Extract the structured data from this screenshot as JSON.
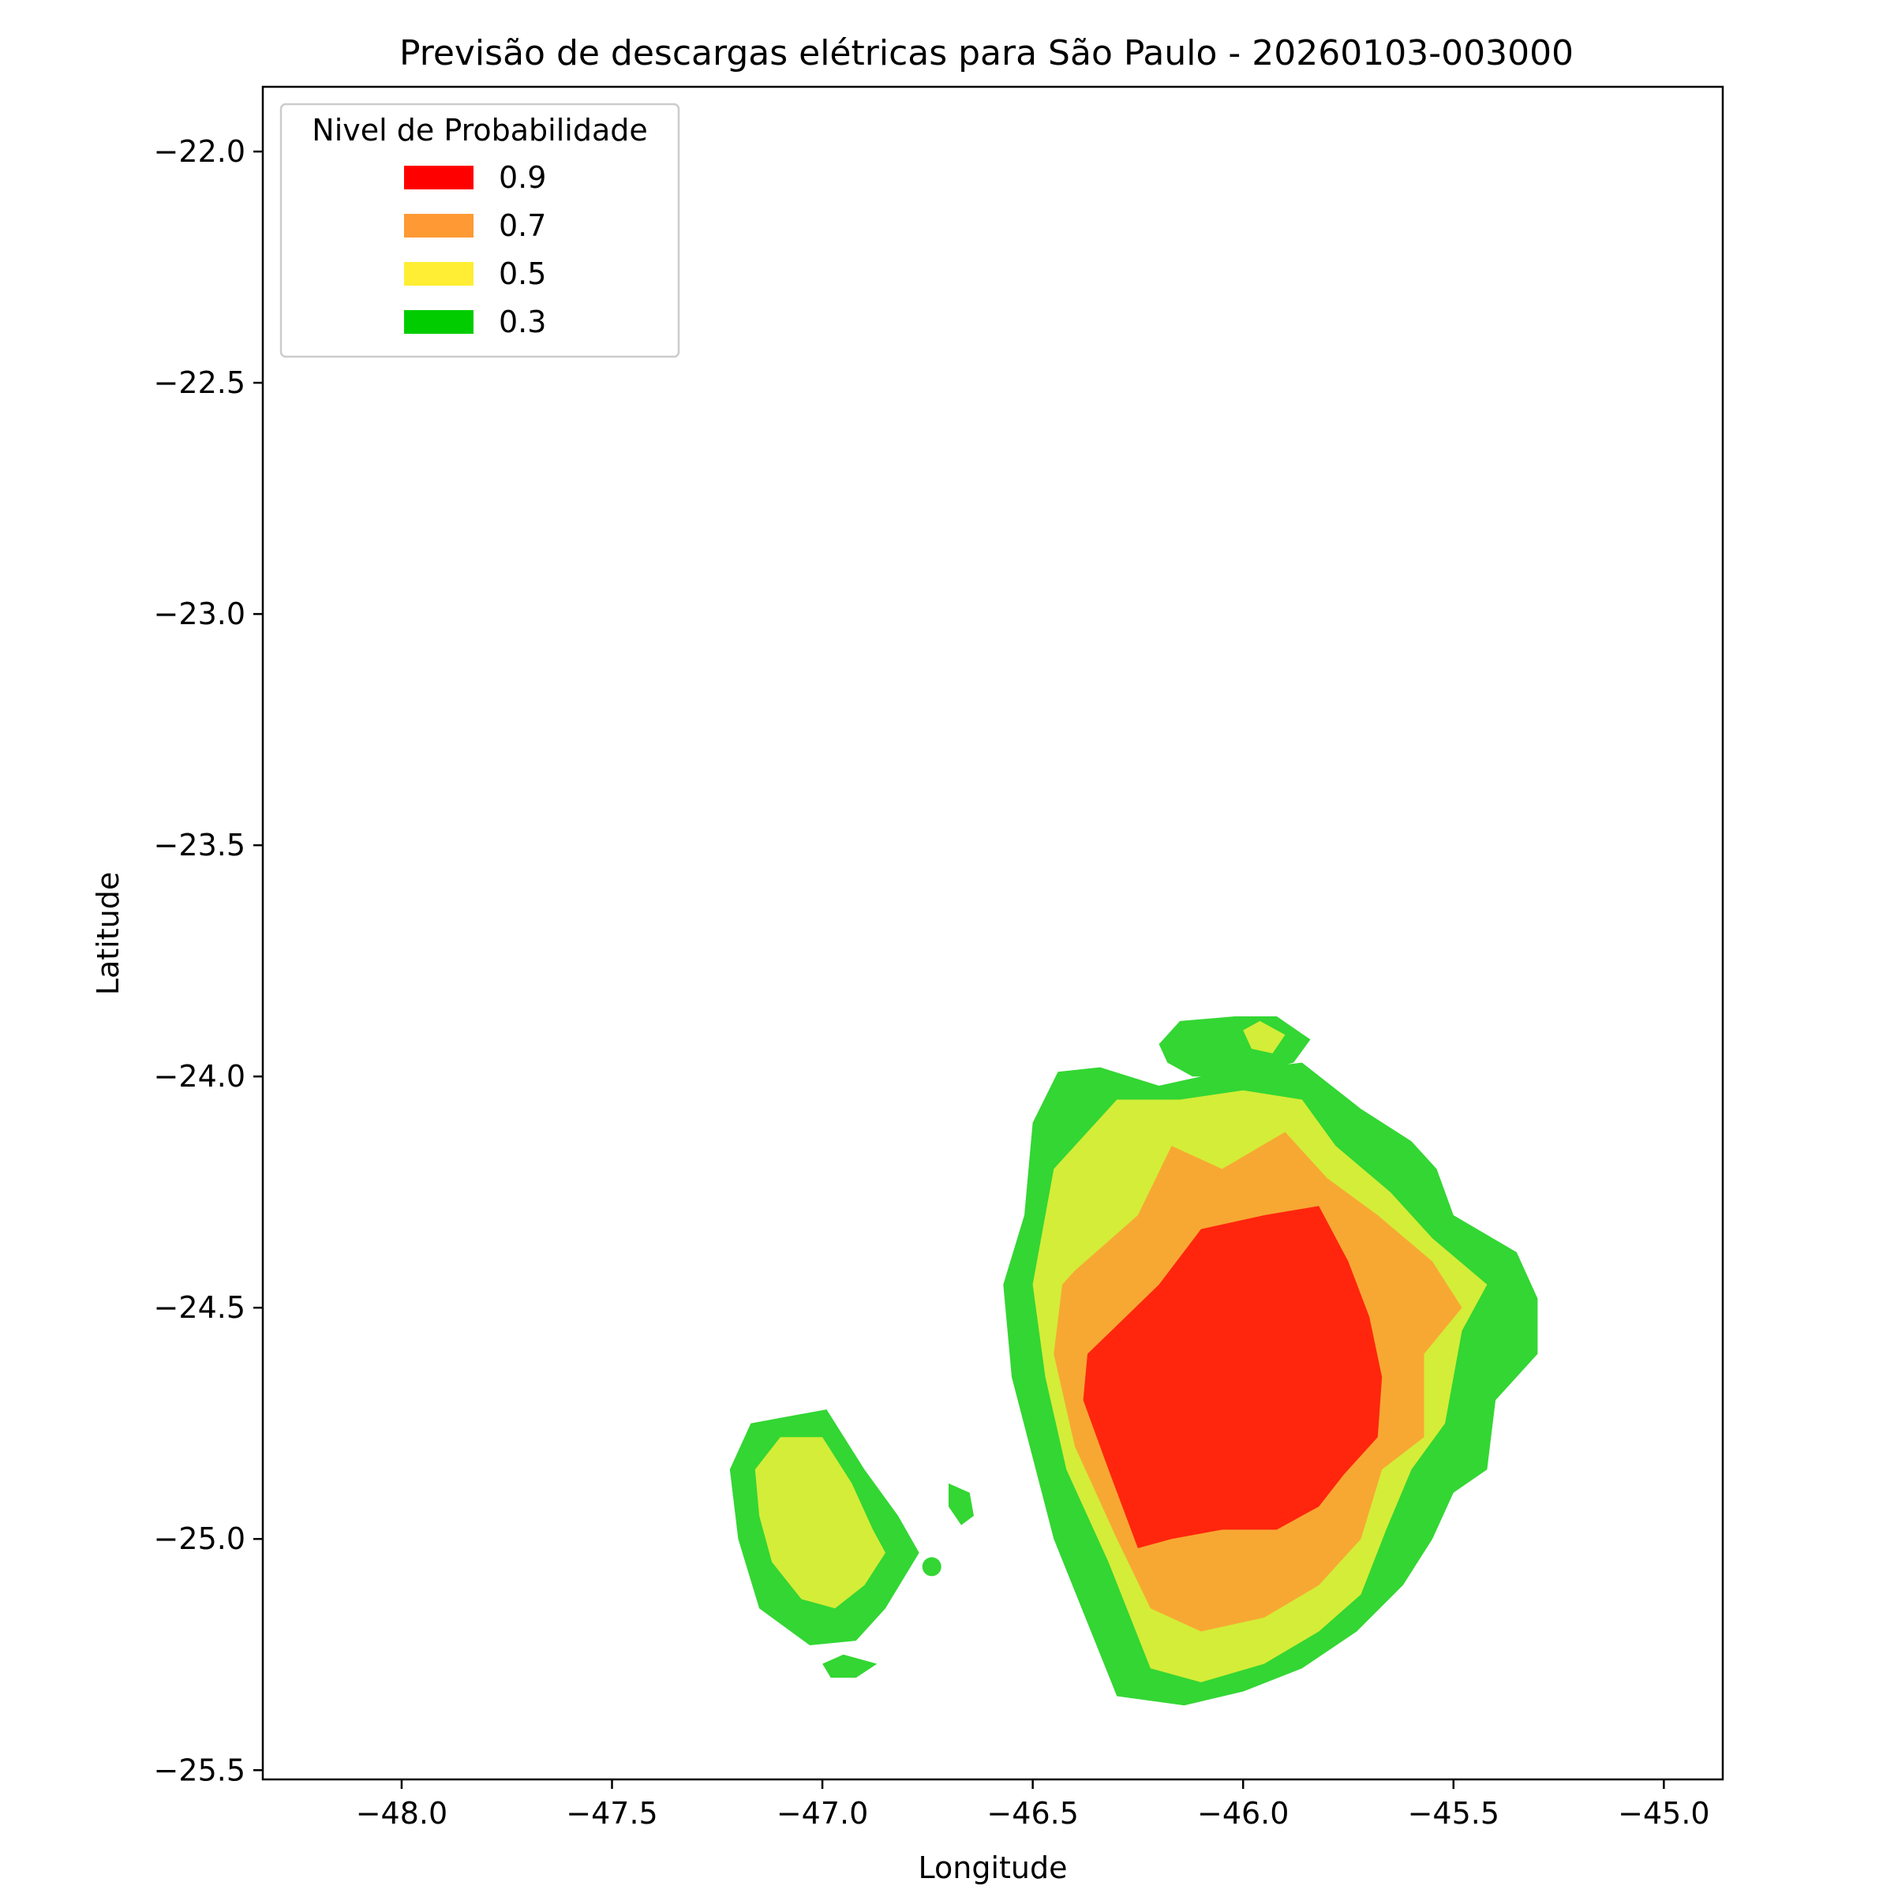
{
  "chart_data": {
    "type": "contour",
    "title": "Previsão de descargas elétricas para São Paulo - 20260103-003000",
    "xlabel": "Longitude",
    "ylabel": "Latitude",
    "xlim": [
      -48.33,
      -44.86
    ],
    "ylim": [
      -25.52,
      -21.86
    ],
    "x_ticks": [
      -48.0,
      -47.5,
      -47.0,
      -46.5,
      -46.0,
      -45.5,
      -45.0
    ],
    "x_tick_labels": [
      "−48.0",
      "−47.5",
      "−47.0",
      "−46.5",
      "−46.0",
      "−45.5",
      "−45.0"
    ],
    "y_ticks": [
      -22.0,
      -22.5,
      -23.0,
      -23.5,
      -24.0,
      -24.5,
      -25.0,
      -25.5
    ],
    "y_tick_labels": [
      "−22.0",
      "−22.5",
      "−23.0",
      "−23.5",
      "−24.0",
      "−24.5",
      "−25.0",
      "−25.5"
    ],
    "grid": false,
    "legend": {
      "title": "Nivel de Probabilidade",
      "placement": "top-left",
      "entries": [
        {
          "label": "0.9",
          "color": "#ff0000"
        },
        {
          "label": "0.7",
          "color": "#ff9933"
        },
        {
          "label": "0.5",
          "color": "#ffee33"
        },
        {
          "label": "0.3",
          "color": "#00cc00"
        }
      ]
    },
    "level_fill_colors": {
      "0.3": "#33d633",
      "0.5": "#d4ed38",
      "0.7": "#f7a833",
      "0.9": "#ff260d"
    },
    "regions": [
      {
        "name": "main-cell-0.3",
        "level": "0.3",
        "points": [
          [
            -46.5,
            -24.1
          ],
          [
            -46.44,
            -23.99
          ],
          [
            -46.34,
            -23.98
          ],
          [
            -46.2,
            -24.02
          ],
          [
            -46.05,
            -23.99
          ],
          [
            -45.86,
            -23.97
          ],
          [
            -45.72,
            -24.07
          ],
          [
            -45.6,
            -24.14
          ],
          [
            -45.54,
            -24.2
          ],
          [
            -45.5,
            -24.3
          ],
          [
            -45.35,
            -24.38
          ],
          [
            -45.3,
            -24.48
          ],
          [
            -45.3,
            -24.6
          ],
          [
            -45.4,
            -24.7
          ],
          [
            -45.42,
            -24.85
          ],
          [
            -45.5,
            -24.9
          ],
          [
            -45.55,
            -25.0
          ],
          [
            -45.62,
            -25.1
          ],
          [
            -45.73,
            -25.2
          ],
          [
            -45.86,
            -25.28
          ],
          [
            -46.0,
            -25.33
          ],
          [
            -46.14,
            -25.36
          ],
          [
            -46.3,
            -25.34
          ],
          [
            -46.45,
            -25.0
          ],
          [
            -46.55,
            -24.65
          ],
          [
            -46.57,
            -24.45
          ],
          [
            -46.52,
            -24.3
          ]
        ]
      },
      {
        "name": "main-cell-0.5",
        "level": "0.5",
        "points": [
          [
            -46.45,
            -24.2
          ],
          [
            -46.3,
            -24.05
          ],
          [
            -46.15,
            -24.05
          ],
          [
            -46.0,
            -24.03
          ],
          [
            -45.86,
            -24.05
          ],
          [
            -45.78,
            -24.15
          ],
          [
            -45.65,
            -24.25
          ],
          [
            -45.55,
            -24.35
          ],
          [
            -45.42,
            -24.45
          ],
          [
            -45.48,
            -24.55
          ],
          [
            -45.52,
            -24.75
          ],
          [
            -45.6,
            -24.85
          ],
          [
            -45.66,
            -24.98
          ],
          [
            -45.72,
            -25.12
          ],
          [
            -45.82,
            -25.2
          ],
          [
            -45.95,
            -25.27
          ],
          [
            -46.1,
            -25.31
          ],
          [
            -46.22,
            -25.28
          ],
          [
            -46.32,
            -25.05
          ],
          [
            -46.42,
            -24.85
          ],
          [
            -46.47,
            -24.65
          ],
          [
            -46.5,
            -24.45
          ]
        ]
      },
      {
        "name": "main-cell-0.7",
        "level": "0.7",
        "points": [
          [
            -46.4,
            -24.42
          ],
          [
            -46.25,
            -24.3
          ],
          [
            -46.17,
            -24.15
          ],
          [
            -46.05,
            -24.2
          ],
          [
            -45.9,
            -24.12
          ],
          [
            -45.8,
            -24.22
          ],
          [
            -45.68,
            -24.3
          ],
          [
            -45.55,
            -24.4
          ],
          [
            -45.48,
            -24.5
          ],
          [
            -45.57,
            -24.6
          ],
          [
            -45.57,
            -24.78
          ],
          [
            -45.67,
            -24.85
          ],
          [
            -45.72,
            -25.0
          ],
          [
            -45.82,
            -25.1
          ],
          [
            -45.95,
            -25.17
          ],
          [
            -46.1,
            -25.2
          ],
          [
            -46.22,
            -25.15
          ],
          [
            -46.3,
            -25.0
          ],
          [
            -46.4,
            -24.8
          ],
          [
            -46.45,
            -24.6
          ],
          [
            -46.43,
            -24.45
          ]
        ]
      },
      {
        "name": "main-cell-0.9",
        "level": "0.9",
        "points": [
          [
            -46.37,
            -24.6
          ],
          [
            -46.2,
            -24.45
          ],
          [
            -46.1,
            -24.33
          ],
          [
            -45.95,
            -24.3
          ],
          [
            -45.82,
            -24.28
          ],
          [
            -45.75,
            -24.4
          ],
          [
            -45.7,
            -24.52
          ],
          [
            -45.67,
            -24.65
          ],
          [
            -45.68,
            -24.78
          ],
          [
            -45.76,
            -24.86
          ],
          [
            -45.82,
            -24.93
          ],
          [
            -45.92,
            -24.98
          ],
          [
            -46.05,
            -24.98
          ],
          [
            -46.17,
            -25.0
          ],
          [
            -46.25,
            -25.02
          ],
          [
            -46.32,
            -24.85
          ],
          [
            -46.38,
            -24.7
          ]
        ]
      },
      {
        "name": "north-cell-0.3",
        "level": "0.3",
        "points": [
          [
            -46.2,
            -23.93
          ],
          [
            -46.15,
            -23.88
          ],
          [
            -46.02,
            -23.87
          ],
          [
            -45.92,
            -23.87
          ],
          [
            -45.84,
            -23.92
          ],
          [
            -45.88,
            -23.97
          ],
          [
            -46.0,
            -24.0
          ],
          [
            -46.12,
            -24.0
          ],
          [
            -46.18,
            -23.97
          ]
        ]
      },
      {
        "name": "north-cell-0.5",
        "level": "0.5",
        "points": [
          [
            -46.0,
            -23.9
          ],
          [
            -45.96,
            -23.88
          ],
          [
            -45.9,
            -23.91
          ],
          [
            -45.93,
            -23.95
          ],
          [
            -45.98,
            -23.94
          ]
        ]
      },
      {
        "name": "west-cell-0.3",
        "level": "0.3",
        "points": [
          [
            -47.22,
            -24.85
          ],
          [
            -47.17,
            -24.75
          ],
          [
            -46.99,
            -24.72
          ],
          [
            -46.9,
            -24.85
          ],
          [
            -46.82,
            -24.95
          ],
          [
            -46.77,
            -25.03
          ],
          [
            -46.85,
            -25.15
          ],
          [
            -46.92,
            -25.22
          ],
          [
            -47.03,
            -25.23
          ],
          [
            -47.15,
            -25.15
          ],
          [
            -47.2,
            -25.0
          ]
        ]
      },
      {
        "name": "west-cell-0.5",
        "level": "0.5",
        "points": [
          [
            -47.16,
            -24.85
          ],
          [
            -47.1,
            -24.78
          ],
          [
            -47.0,
            -24.78
          ],
          [
            -46.93,
            -24.88
          ],
          [
            -46.88,
            -24.98
          ],
          [
            -46.85,
            -25.03
          ],
          [
            -46.9,
            -25.1
          ],
          [
            -46.97,
            -25.15
          ],
          [
            -47.05,
            -25.13
          ],
          [
            -47.12,
            -25.05
          ],
          [
            -47.15,
            -24.95
          ]
        ]
      },
      {
        "name": "west-fragment-0.3",
        "level": "0.3",
        "points": [
          [
            -47.0,
            -25.27
          ],
          [
            -46.95,
            -25.25
          ],
          [
            -46.87,
            -25.27
          ],
          [
            -46.92,
            -25.3
          ],
          [
            -46.98,
            -25.3
          ]
        ]
      },
      {
        "name": "east-fragment-0.3",
        "level": "0.3",
        "points": [
          [
            -46.7,
            -24.88
          ],
          [
            -46.65,
            -24.9
          ],
          [
            -46.64,
            -24.95
          ],
          [
            -46.67,
            -24.97
          ],
          [
            -46.7,
            -24.93
          ]
        ]
      }
    ],
    "dots": [
      {
        "name": "dot-north",
        "lon": -46.08,
        "lat": -23.95,
        "level": "0.3"
      },
      {
        "name": "dot-west",
        "lon": -46.74,
        "lat": -25.06,
        "level": "0.3"
      }
    ]
  }
}
